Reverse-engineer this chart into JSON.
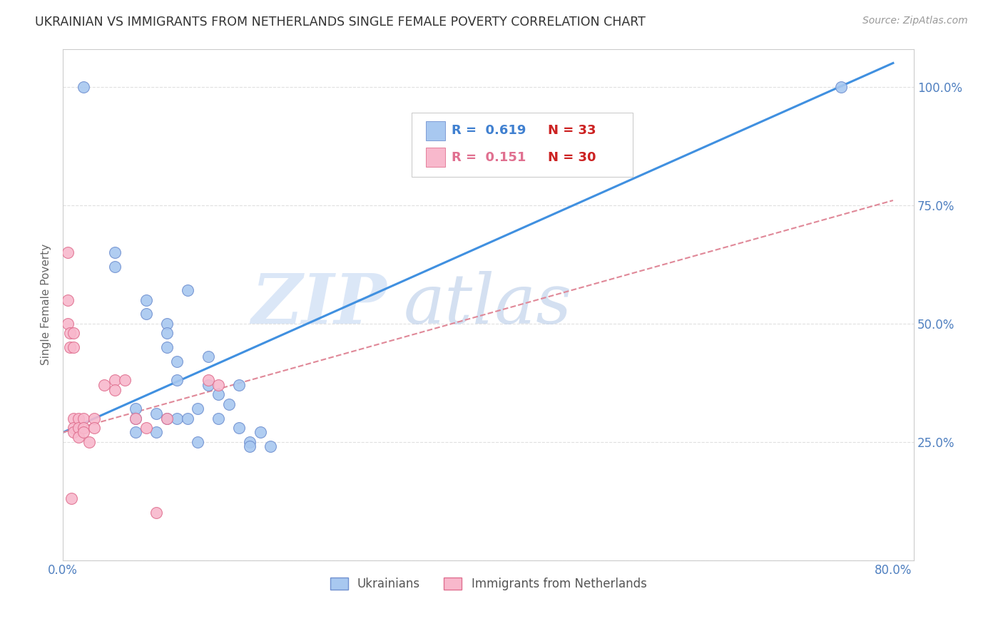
{
  "title": "UKRAINIAN VS IMMIGRANTS FROM NETHERLANDS SINGLE FEMALE POVERTY CORRELATION CHART",
  "source": "Source: ZipAtlas.com",
  "ylabel_label": "Single Female Poverty",
  "xlim": [
    0.0,
    0.82
  ],
  "ylim": [
    0.0,
    1.08
  ],
  "blue_R": 0.619,
  "blue_N": 33,
  "pink_R": 0.151,
  "pink_N": 30,
  "blue_label": "Ukrainians",
  "pink_label": "Immigrants from Netherlands",
  "blue_color": "#a8c8f0",
  "pink_color": "#f8b8cc",
  "blue_edge": "#7090d0",
  "pink_edge": "#e07090",
  "blue_line_color": "#4090e0",
  "pink_line_color": "#e08898",
  "watermark_top": "ZIP",
  "watermark_bot": "atlas",
  "watermark_color": "#d0e4f8",
  "blue_x": [
    0.02,
    0.05,
    0.05,
    0.07,
    0.07,
    0.07,
    0.08,
    0.08,
    0.09,
    0.09,
    0.1,
    0.1,
    0.1,
    0.1,
    0.11,
    0.11,
    0.11,
    0.12,
    0.12,
    0.13,
    0.13,
    0.14,
    0.14,
    0.15,
    0.15,
    0.16,
    0.17,
    0.17,
    0.18,
    0.18,
    0.19,
    0.2,
    0.75
  ],
  "blue_y": [
    1.0,
    0.65,
    0.62,
    0.32,
    0.3,
    0.27,
    0.55,
    0.52,
    0.31,
    0.27,
    0.5,
    0.48,
    0.45,
    0.3,
    0.42,
    0.38,
    0.3,
    0.57,
    0.3,
    0.32,
    0.25,
    0.43,
    0.37,
    0.35,
    0.3,
    0.33,
    0.37,
    0.28,
    0.25,
    0.24,
    0.27,
    0.24,
    1.0
  ],
  "pink_x": [
    0.005,
    0.005,
    0.005,
    0.007,
    0.007,
    0.008,
    0.01,
    0.01,
    0.01,
    0.01,
    0.01,
    0.015,
    0.015,
    0.015,
    0.02,
    0.02,
    0.02,
    0.025,
    0.03,
    0.03,
    0.04,
    0.05,
    0.05,
    0.06,
    0.07,
    0.08,
    0.09,
    0.1,
    0.14,
    0.15
  ],
  "pink_y": [
    0.65,
    0.55,
    0.5,
    0.48,
    0.45,
    0.13,
    0.48,
    0.45,
    0.3,
    0.28,
    0.27,
    0.3,
    0.28,
    0.26,
    0.3,
    0.28,
    0.27,
    0.25,
    0.3,
    0.28,
    0.37,
    0.38,
    0.36,
    0.38,
    0.3,
    0.28,
    0.1,
    0.3,
    0.38,
    0.37
  ],
  "blue_trend_x0": 0.0,
  "blue_trend_x1": 0.8,
  "blue_trend_y0": 0.27,
  "blue_trend_y1": 1.05,
  "pink_trend_x0": 0.0,
  "pink_trend_x1": 0.8,
  "pink_trend_y0": 0.27,
  "pink_trend_y1": 0.76,
  "grid_color": "#e0e0e0",
  "tick_color": "#5080c0",
  "axis_color": "#cccccc",
  "bg_color": "#ffffff",
  "title_color": "#333333",
  "legend_R_color_blue": "#4080d0",
  "legend_R_color_pink": "#e07090",
  "legend_N_color": "#cc2222",
  "yticks": [
    0.0,
    0.25,
    0.5,
    0.75,
    1.0
  ],
  "ytick_labels": [
    "",
    "25.0%",
    "50.0%",
    "75.0%",
    "100.0%"
  ],
  "xticks": [
    0.0,
    0.1,
    0.2,
    0.3,
    0.4,
    0.5,
    0.6,
    0.7,
    0.8
  ],
  "xtick_labels": [
    "0.0%",
    "",
    "",
    "",
    "",
    "",
    "",
    "",
    "80.0%"
  ]
}
